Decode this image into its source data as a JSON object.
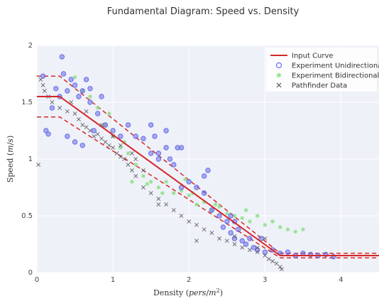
{
  "chart_data": {
    "type": "scatter",
    "title": "Fundamental Diagram: Speed vs. Density",
    "xlabel": "Density (pers/m²)",
    "ylabel": "Speed (m/s)",
    "xlim": [
      0,
      4.5
    ],
    "ylim": [
      0,
      2
    ],
    "x_ticks": [
      "0",
      "1",
      "2",
      "3",
      "4"
    ],
    "x_tick_values": [
      0,
      1,
      2,
      3,
      4
    ],
    "y_ticks": [
      "0",
      "0.5",
      "1",
      "1.5",
      "2"
    ],
    "y_tick_values": [
      0,
      0.5,
      1,
      1.5,
      2
    ],
    "grid": true,
    "legend_position": "top-right",
    "colors": {
      "input_curve": "#d62728",
      "unidirectional": "#6a6ee8",
      "bidirectional": "#8fe08a",
      "pathfinder": "#555555",
      "plot_bg": "#eef1f8",
      "grid": "#ffffff"
    },
    "legend": [
      {
        "label": "Input Curve",
        "marker": "line"
      },
      {
        "label": "Experiment Unidirectional",
        "marker": "circle"
      },
      {
        "label": "Experiment Bidirectional",
        "marker": "asterisk"
      },
      {
        "label": "Pathfinder Data",
        "marker": "x"
      }
    ],
    "input_curve": {
      "x": [
        0,
        0.3,
        3.2,
        4.5
      ],
      "y": [
        1.55,
        1.55,
        0.15,
        0.15
      ],
      "upper_band": {
        "x": [
          0,
          0.3,
          3.2,
          4.5
        ],
        "y": [
          1.73,
          1.73,
          0.17,
          0.17
        ]
      },
      "lower_band": {
        "x": [
          0,
          0.3,
          3.2,
          4.5
        ],
        "y": [
          1.37,
          1.37,
          0.13,
          0.13
        ]
      }
    },
    "series": [
      {
        "name": "Experiment Unidirectional",
        "points": [
          [
            0.08,
            1.73
          ],
          [
            0.12,
            1.25
          ],
          [
            0.15,
            1.22
          ],
          [
            0.2,
            1.45
          ],
          [
            0.25,
            1.62
          ],
          [
            0.3,
            1.55
          ],
          [
            0.33,
            1.9
          ],
          [
            0.35,
            1.75
          ],
          [
            0.4,
            1.6
          ],
          [
            0.45,
            1.7
          ],
          [
            0.5,
            1.65
          ],
          [
            0.55,
            1.55
          ],
          [
            0.6,
            1.6
          ],
          [
            0.7,
            1.5
          ],
          [
            0.8,
            1.4
          ],
          [
            0.9,
            1.3
          ],
          [
            0.4,
            1.2
          ],
          [
            0.5,
            1.15
          ],
          [
            0.6,
            1.12
          ],
          [
            0.75,
            1.25
          ],
          [
            1.0,
            1.25
          ],
          [
            1.1,
            1.2
          ],
          [
            1.2,
            1.3
          ],
          [
            1.3,
            1.2
          ],
          [
            1.4,
            1.18
          ],
          [
            1.5,
            1.3
          ],
          [
            1.55,
            1.2
          ],
          [
            1.6,
            1.05
          ],
          [
            1.7,
            1.1
          ],
          [
            1.75,
            1.0
          ],
          [
            1.8,
            0.95
          ],
          [
            1.5,
            1.05
          ],
          [
            1.6,
            1.0
          ],
          [
            1.9,
            0.75
          ],
          [
            2.0,
            0.8
          ],
          [
            2.1,
            0.75
          ],
          [
            2.2,
            0.7
          ],
          [
            2.3,
            0.55
          ],
          [
            2.4,
            0.5
          ],
          [
            2.45,
            0.4
          ],
          [
            2.5,
            0.45
          ],
          [
            2.55,
            0.35
          ],
          [
            2.6,
            0.3
          ],
          [
            2.65,
            0.38
          ],
          [
            2.7,
            0.28
          ],
          [
            2.75,
            0.25
          ],
          [
            2.8,
            0.3
          ],
          [
            2.85,
            0.22
          ],
          [
            2.9,
            0.2
          ],
          [
            3.0,
            0.18
          ],
          [
            3.1,
            0.2
          ],
          [
            3.2,
            0.17
          ],
          [
            3.3,
            0.18
          ],
          [
            3.4,
            0.15
          ],
          [
            3.5,
            0.17
          ],
          [
            3.6,
            0.16
          ],
          [
            3.7,
            0.15
          ],
          [
            3.8,
            0.16
          ],
          [
            3.9,
            0.14
          ],
          [
            1.85,
            1.1
          ],
          [
            1.9,
            1.1
          ],
          [
            1.7,
            1.25
          ],
          [
            2.2,
            0.85
          ],
          [
            2.25,
            0.9
          ],
          [
            0.65,
            1.7
          ],
          [
            0.7,
            1.62
          ],
          [
            0.85,
            1.55
          ],
          [
            2.55,
            0.5
          ],
          [
            2.6,
            0.45
          ],
          [
            2.95,
            0.3
          ]
        ]
      },
      {
        "name": "Experiment Bidirectional",
        "points": [
          [
            0.5,
            1.72
          ],
          [
            0.6,
            1.6
          ],
          [
            0.7,
            1.55
          ],
          [
            0.8,
            1.45
          ],
          [
            0.9,
            1.3
          ],
          [
            1.0,
            1.2
          ],
          [
            1.1,
            1.1
          ],
          [
            1.2,
            1.05
          ],
          [
            1.3,
            0.95
          ],
          [
            1.4,
            0.85
          ],
          [
            1.5,
            0.8
          ],
          [
            1.6,
            0.75
          ],
          [
            1.7,
            0.8
          ],
          [
            1.8,
            0.7
          ],
          [
            1.9,
            0.72
          ],
          [
            2.0,
            0.68
          ],
          [
            2.1,
            0.6
          ],
          [
            2.2,
            0.62
          ],
          [
            2.3,
            0.55
          ],
          [
            2.4,
            0.58
          ],
          [
            2.5,
            0.52
          ],
          [
            2.6,
            0.5
          ],
          [
            2.7,
            0.48
          ],
          [
            2.8,
            0.45
          ],
          [
            2.9,
            0.5
          ],
          [
            3.0,
            0.42
          ],
          [
            3.1,
            0.45
          ],
          [
            3.2,
            0.4
          ],
          [
            3.3,
            0.38
          ],
          [
            3.5,
            0.38
          ],
          [
            1.25,
            0.8
          ],
          [
            1.45,
            0.78
          ],
          [
            1.65,
            0.7
          ],
          [
            1.95,
            0.82
          ],
          [
            2.35,
            0.6
          ],
          [
            2.05,
            0.7
          ],
          [
            0.95,
            1.4
          ],
          [
            1.15,
            1.15
          ],
          [
            3.4,
            0.36
          ],
          [
            2.75,
            0.55
          ]
        ]
      },
      {
        "name": "Pathfinder Data",
        "points": [
          [
            0.02,
            0.95
          ],
          [
            0.05,
            1.7
          ],
          [
            0.08,
            1.65
          ],
          [
            0.1,
            1.6
          ],
          [
            0.15,
            1.55
          ],
          [
            0.2,
            1.5
          ],
          [
            0.3,
            1.45
          ],
          [
            0.4,
            1.42
          ],
          [
            0.5,
            1.4
          ],
          [
            0.55,
            1.35
          ],
          [
            0.6,
            1.3
          ],
          [
            0.65,
            1.28
          ],
          [
            0.7,
            1.25
          ],
          [
            0.75,
            1.2
          ],
          [
            0.8,
            1.22
          ],
          [
            0.85,
            1.18
          ],
          [
            0.9,
            1.15
          ],
          [
            0.95,
            1.12
          ],
          [
            1.0,
            1.1
          ],
          [
            1.05,
            1.05
          ],
          [
            1.1,
            1.02
          ],
          [
            1.15,
            1.0
          ],
          [
            1.2,
            0.95
          ],
          [
            1.25,
            0.9
          ],
          [
            1.3,
            0.85
          ],
          [
            1.4,
            0.75
          ],
          [
            1.5,
            0.7
          ],
          [
            1.6,
            0.65
          ],
          [
            1.7,
            0.6
          ],
          [
            1.8,
            0.55
          ],
          [
            1.9,
            0.5
          ],
          [
            2.0,
            0.45
          ],
          [
            2.1,
            0.42
          ],
          [
            2.2,
            0.38
          ],
          [
            2.3,
            0.35
          ],
          [
            2.4,
            0.3
          ],
          [
            2.5,
            0.28
          ],
          [
            2.6,
            0.25
          ],
          [
            2.7,
            0.22
          ],
          [
            2.8,
            0.2
          ],
          [
            2.9,
            0.18
          ],
          [
            3.0,
            0.15
          ],
          [
            3.05,
            0.12
          ],
          [
            3.1,
            0.1
          ],
          [
            3.15,
            0.08
          ],
          [
            3.2,
            0.05
          ],
          [
            3.22,
            0.03
          ],
          [
            0.45,
            1.5
          ],
          [
            0.65,
            1.42
          ],
          [
            0.85,
            1.3
          ],
          [
            1.0,
            1.2
          ],
          [
            1.1,
            1.12
          ],
          [
            1.3,
            1.0
          ],
          [
            1.6,
            0.6
          ],
          [
            2.1,
            0.28
          ],
          [
            2.6,
            0.32
          ],
          [
            2.9,
            0.22
          ],
          [
            3.0,
            0.3
          ],
          [
            1.4,
            0.9
          ],
          [
            1.25,
            1.05
          ]
        ]
      }
    ]
  }
}
